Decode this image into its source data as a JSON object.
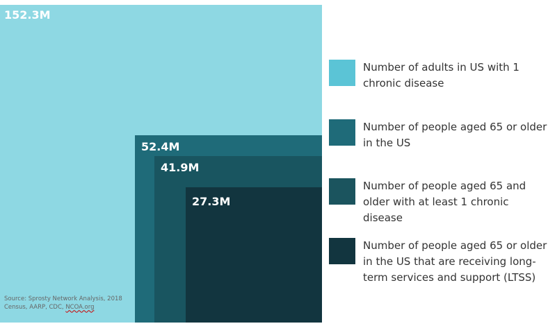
{
  "chart_data": {
    "type": "nested-area",
    "values": [
      152.3,
      52.4,
      41.9,
      27.3
    ],
    "value_labels": [
      "152.3M",
      "52.4M",
      "41.9M",
      "27.3M"
    ],
    "legend": [
      {
        "label": "Number of adults in US with 1 chronic disease",
        "color": "#8ed8e3"
      },
      {
        "label": "Number of people aged 65 or older in the US",
        "color": "#1f6b79"
      },
      {
        "label": "Number of people aged 65 and older with at least 1 chronic disease",
        "color": "#195560"
      },
      {
        "label": "Number of people aged 65 or older in the US that are receiving long-term services and support (LTSS)",
        "color": "#12353f"
      }
    ],
    "legend_colors": [
      "#5bc4d6",
      "#1f6b79",
      "#1b545e",
      "#12353f"
    ],
    "legend_placement": "right"
  },
  "source": {
    "prefix": "Source: Sprosty Network Analysis, 2018 Census, AARP, CDC, ",
    "link": "NCOA.org"
  }
}
